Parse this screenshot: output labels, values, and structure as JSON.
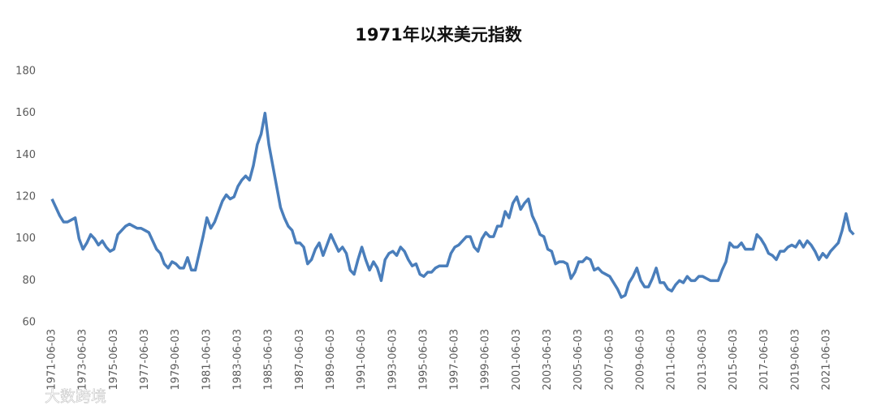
{
  "chart_data": {
    "type": "line",
    "title": "1971年以来美元指数",
    "categories": [
      "1971-06-03",
      null,
      null,
      null,
      null,
      null,
      null,
      null,
      "1973-06-03",
      null,
      null,
      null,
      null,
      null,
      null,
      null,
      "1975-06-03",
      null,
      null,
      null,
      null,
      null,
      null,
      null,
      "1977-06-03",
      null,
      null,
      null,
      null,
      null,
      null,
      null,
      "1979-06-03",
      null,
      null,
      null,
      null,
      null,
      null,
      null,
      "1981-06-03",
      null,
      null,
      null,
      null,
      null,
      null,
      null,
      "1983-06-03",
      null,
      null,
      null,
      null,
      null,
      null,
      null,
      "1985-06-03",
      null,
      null,
      null,
      null,
      null,
      null,
      null,
      "1987-06-03",
      null,
      null,
      null,
      null,
      null,
      null,
      null,
      "1989-06-03",
      null,
      null,
      null,
      null,
      null,
      null,
      null,
      "1991-06-03",
      null,
      null,
      null,
      null,
      null,
      null,
      null,
      "1993-06-03",
      null,
      null,
      null,
      null,
      null,
      null,
      null,
      "1995-06-03",
      null,
      null,
      null,
      null,
      null,
      null,
      null,
      "1997-06-03",
      null,
      null,
      null,
      null,
      null,
      null,
      null,
      "1999-06-03",
      null,
      null,
      null,
      null,
      null,
      null,
      null,
      "2001-06-03",
      null,
      null,
      null,
      null,
      null,
      null,
      null,
      "2003-06-03",
      null,
      null,
      null,
      null,
      null,
      null,
      null,
      "2005-06-03",
      null,
      null,
      null,
      null,
      null,
      null,
      null,
      "2007-06-03",
      null,
      null,
      null,
      null,
      null,
      null,
      null,
      "2009-06-03",
      null,
      null,
      null,
      null,
      null,
      null,
      null,
      "2011-06-03",
      null,
      null,
      null,
      null,
      null,
      null,
      null,
      "2013-06-03",
      null,
      null,
      null,
      null,
      null,
      null,
      null,
      "2015-06-03",
      null,
      null,
      null,
      null,
      null,
      null,
      null,
      "2017-06-03",
      null,
      null,
      null,
      null,
      null,
      null,
      null,
      "2019-06-03",
      null,
      null,
      null,
      null,
      null,
      null,
      null,
      "2021-06-03",
      null,
      null,
      null,
      null,
      null,
      null,
      null
    ],
    "values": [
      119,
      115,
      111,
      108,
      108,
      109,
      110,
      100,
      95,
      98,
      102,
      100,
      97,
      99,
      96,
      94,
      95,
      102,
      104,
      106,
      107,
      106,
      105,
      105,
      104,
      103,
      99,
      95,
      93,
      88,
      86,
      89,
      88,
      86,
      86,
      91,
      85,
      85,
      93,
      101,
      110,
      105,
      108,
      113,
      118,
      121,
      119,
      120,
      125,
      128,
      130,
      128,
      135,
      145,
      150,
      160,
      145,
      135,
      125,
      115,
      110,
      106,
      104,
      98,
      98,
      96,
      88,
      90,
      95,
      98,
      92,
      97,
      102,
      98,
      94,
      96,
      93,
      85,
      83,
      90,
      96,
      90,
      85,
      89,
      86,
      80,
      90,
      93,
      94,
      92,
      96,
      94,
      90,
      87,
      88,
      83,
      82,
      84,
      84,
      86,
      87,
      87,
      87,
      93,
      96,
      97,
      99,
      101,
      101,
      96,
      94,
      100,
      103,
      101,
      101,
      106,
      106,
      113,
      110,
      117,
      120,
      114,
      117,
      119,
      111,
      107,
      102,
      101,
      95,
      94,
      88,
      89,
      89,
      88,
      81,
      84,
      89,
      89,
      91,
      90,
      85,
      86,
      84,
      83,
      82,
      79,
      76,
      72,
      73,
      79,
      82,
      86,
      80,
      77,
      77,
      81,
      86,
      79,
      79,
      76,
      75,
      78,
      80,
      79,
      82,
      80,
      80,
      82,
      82,
      81,
      80,
      80,
      80,
      85,
      89,
      98,
      96,
      96,
      98,
      95,
      95,
      95,
      102,
      100,
      97,
      93,
      92,
      90,
      94,
      94,
      96,
      97,
      96,
      99,
      96,
      99,
      97,
      94,
      90,
      93,
      91,
      94,
      96,
      98,
      104,
      112,
      104,
      102
    ],
    "color": "#4a7ebb",
    "ylim": [
      60,
      180
    ],
    "yticks": [
      60,
      80,
      100,
      120,
      140,
      160,
      180
    ],
    "watermark": "大数跨境"
  }
}
